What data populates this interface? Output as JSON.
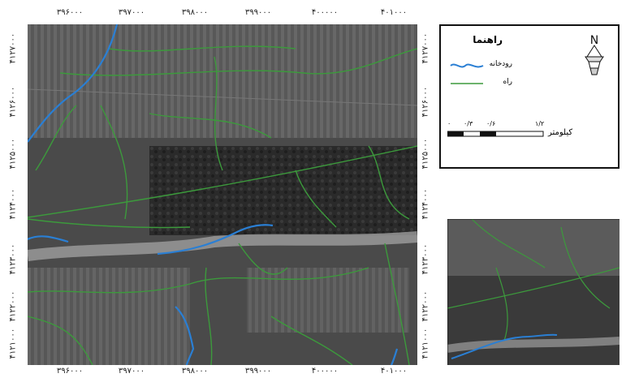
{
  "map": {
    "x_ticks_top": [
      "۳۹۶۰۰۰",
      "۳۹۷۰۰۰",
      "۳۹۸۰۰۰",
      "۳۹۹۰۰۰",
      "۴۰۰۰۰۰",
      "۴۰۱۰۰۰"
    ],
    "x_ticks_bottom": [
      "۳۹۶۰۰۰",
      "۳۹۷۰۰۰",
      "۳۹۸۰۰۰",
      "۳۹۹۰۰۰",
      "۴۰۰۰۰۰",
      "۴۰۱۰۰۰"
    ],
    "y_ticks": [
      "۴۱۲۷۰۰۰",
      "۴۱۲۶۰۰۰",
      "۴۱۲۵۰۰۰",
      "۴۱۲۴۰۰۰",
      "۴۱۲۳۰۰۰",
      "۴۱۲۲۰۰۰",
      "۴۱۲۱۰۰۰"
    ]
  },
  "legend": {
    "title": "راهنما",
    "items": [
      {
        "label": "رودخانه",
        "color": "#2a7fd4"
      },
      {
        "label": "راه",
        "color": "#3c9a3c"
      }
    ],
    "north_symbol": "N",
    "scale": {
      "ticks": [
        "۰",
        "۰/۳",
        "۰/۶",
        "۱/۲"
      ],
      "unit": "کیلومتر"
    }
  },
  "colors": {
    "river": "#2a7fd4",
    "road": "#3c9a3c"
  }
}
